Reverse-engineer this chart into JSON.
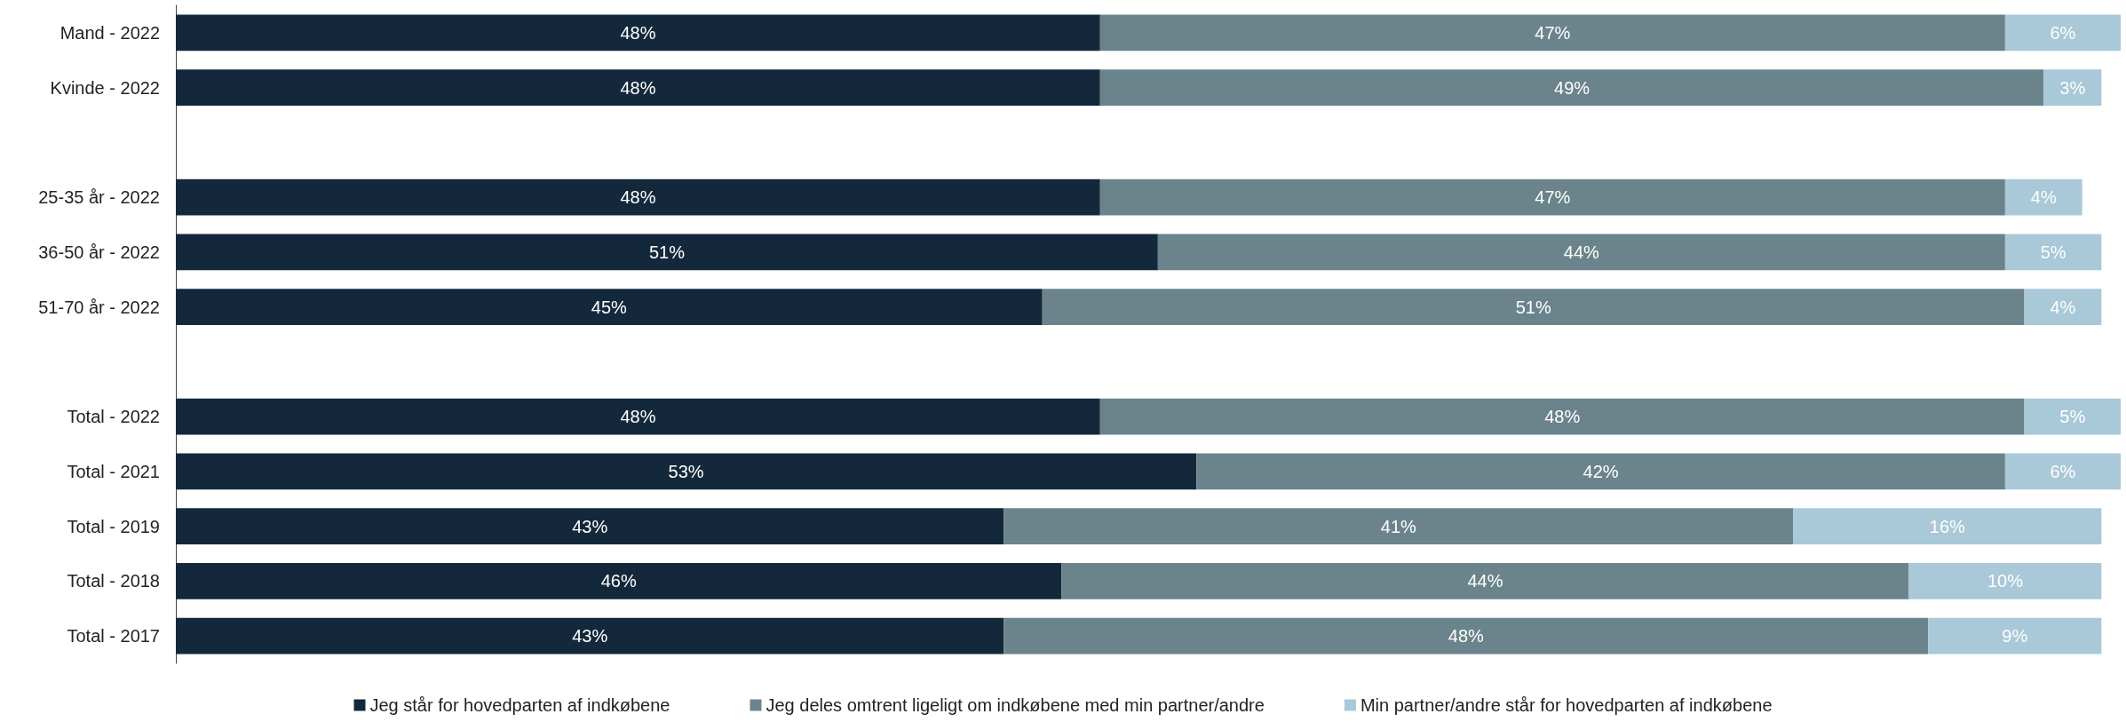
{
  "chart_data": {
    "type": "bar",
    "orientation": "horizontal",
    "stacked": true,
    "legend": "bottom",
    "tick_labels": "y",
    "xlim": [
      0,
      101
    ],
    "categories": [
      "Mand - 2022",
      "Kvinde - 2022",
      null,
      "25-35 år - 2022",
      "36-50 år - 2022",
      "51-70 år - 2022",
      null,
      "Total - 2022",
      "Total - 2021",
      "Total - 2019",
      "Total - 2018",
      "Total - 2017"
    ],
    "series": [
      {
        "name": "Jeg står for hovedparten af indkøbene",
        "color": "#14283c",
        "values": [
          48,
          48,
          null,
          48,
          51,
          45,
          null,
          48,
          53,
          43,
          46,
          43
        ],
        "value_labels": [
          "48%",
          "48%",
          null,
          "48%",
          "51%",
          "45%",
          null,
          "48%",
          "53%",
          "43%",
          "46%",
          "43%"
        ]
      },
      {
        "name": "Jeg deles omtrent ligeligt om indkøbene med min partner/andre",
        "color": "#6b848c",
        "values": [
          47,
          49,
          null,
          47,
          44,
          51,
          null,
          48,
          42,
          41,
          44,
          48
        ],
        "value_labels": [
          "47%",
          "49%",
          null,
          "47%",
          "44%",
          "51%",
          null,
          "48%",
          "42%",
          "41%",
          "44%",
          "48%"
        ]
      },
      {
        "name": "Min partner/andre står for hovedparten af indkøbene",
        "color": "#a9c8d8",
        "values": [
          6,
          3,
          null,
          4,
          5,
          4,
          null,
          5,
          6,
          16,
          10,
          9
        ],
        "value_labels": [
          "6%",
          "3%",
          null,
          "4%",
          "5%",
          "4%",
          null,
          "5%",
          "6%",
          "16%",
          "10%",
          "9%"
        ]
      }
    ]
  }
}
